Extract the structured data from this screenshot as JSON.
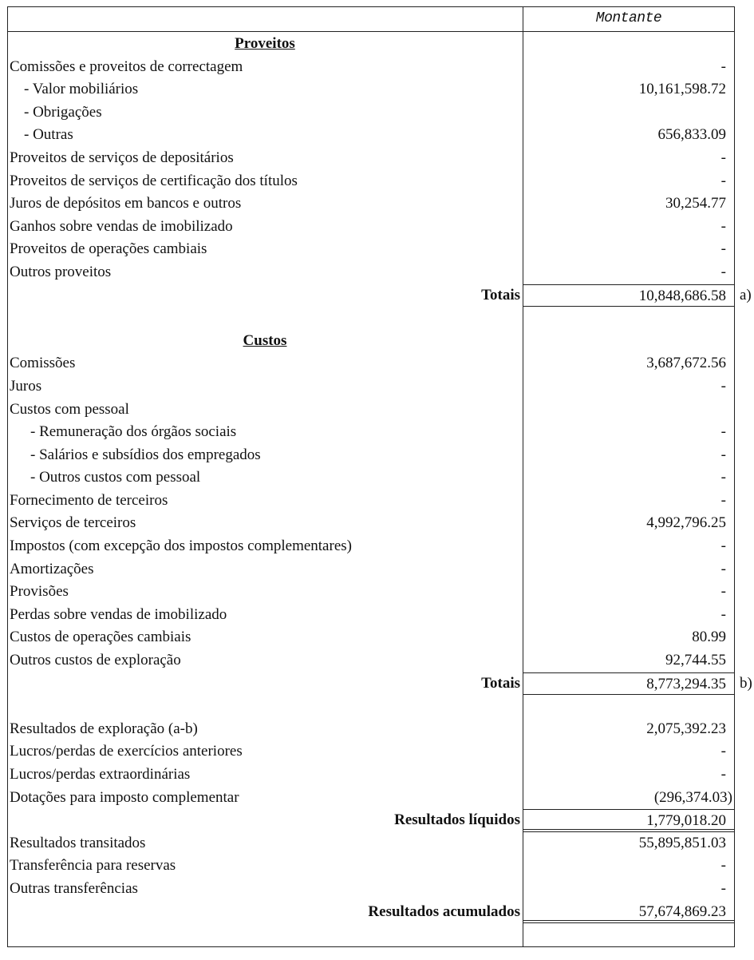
{
  "header": {
    "amount_column": "Montante"
  },
  "rows": [
    {
      "type": "heading",
      "label": "Proveitos",
      "value": ""
    },
    {
      "type": "item",
      "label": "Comissões e proveitos de correctagem",
      "value": "-"
    },
    {
      "type": "sub",
      "label": "- Valor mobiliários",
      "value": "10,161,598.72"
    },
    {
      "type": "sub",
      "label": "- Obrigações",
      "value": ""
    },
    {
      "type": "sub",
      "label": "-  Outras",
      "value": "656,833.09"
    },
    {
      "type": "item",
      "label": "Proveitos de serviços de depositários",
      "value": "-"
    },
    {
      "type": "item",
      "label": "Proveitos de serviços de certificação dos títulos",
      "value": "-"
    },
    {
      "type": "item",
      "label": "Juros de depósitos em bancos e outros",
      "value": "30,254.77"
    },
    {
      "type": "item",
      "label": "Ganhos sobre vendas de imobilizado",
      "value": "-"
    },
    {
      "type": "item",
      "label": "Proveitos de operações cambiais",
      "value": "-"
    },
    {
      "type": "item",
      "label": "Outros proveitos",
      "value": "-"
    },
    {
      "type": "total",
      "label": "Totais",
      "value": "10,848,686.58",
      "note": "a)",
      "rule": "box"
    },
    {
      "type": "blank",
      "label": "",
      "value": ""
    },
    {
      "type": "heading",
      "label": "Custos",
      "value": ""
    },
    {
      "type": "item",
      "label": "Comissões",
      "value": "3,687,672.56"
    },
    {
      "type": "item",
      "label": "Juros",
      "value": "-"
    },
    {
      "type": "item",
      "label": "Custos com pessoal",
      "value": ""
    },
    {
      "type": "sub2",
      "label": "- Remuneração dos órgãos sociais",
      "value": "-"
    },
    {
      "type": "sub2",
      "label": "- Salários e subsídios dos empregados",
      "value": "-"
    },
    {
      "type": "sub2",
      "label": "- Outros custos com pessoal",
      "value": "-"
    },
    {
      "type": "item",
      "label": "Fornecimento de terceiros",
      "value": "-"
    },
    {
      "type": "item",
      "label": "Serviços de terceiros",
      "value": "4,992,796.25"
    },
    {
      "type": "item",
      "label": "Impostos (com excepção dos impostos complementares)",
      "value": "-"
    },
    {
      "type": "item",
      "label": "Amortizações",
      "value": "-"
    },
    {
      "type": "item",
      "label": "Provisões",
      "value": "-"
    },
    {
      "type": "item",
      "label": "Perdas sobre vendas de imobilizado",
      "value": "-"
    },
    {
      "type": "item",
      "label": "Custos de operações cambiais",
      "value": "80.99"
    },
    {
      "type": "item",
      "label": "Outros custos de exploração",
      "value": "92,744.55"
    },
    {
      "type": "total",
      "label": "Totais",
      "value": "8,773,294.35",
      "note": "b)",
      "rule": "box"
    },
    {
      "type": "blank",
      "label": "",
      "value": ""
    },
    {
      "type": "item",
      "label": "Resultados de exploração (a-b)",
      "value": "2,075,392.23"
    },
    {
      "type": "item",
      "label": "Lucros/perdas de exercícios anteriores",
      "value": "-"
    },
    {
      "type": "item",
      "label": "Lucros/perdas extraordinárias",
      "value": "-"
    },
    {
      "type": "item",
      "label": "Dotações para imposto complementar",
      "value": "(296,374.03)",
      "negative": true
    },
    {
      "type": "total",
      "label": "Resultados líquidos",
      "value": "1,779,018.20",
      "rule": "box-double"
    },
    {
      "type": "item",
      "label": "Resultados transitados",
      "value": "55,895,851.03"
    },
    {
      "type": "item",
      "label": "Transferência para reservas",
      "value": "-"
    },
    {
      "type": "item",
      "label": "Outras transferências",
      "value": "-"
    },
    {
      "type": "total",
      "label": "Resultados acumulados",
      "value": "57,674,869.23",
      "rule": "double"
    },
    {
      "type": "blank",
      "label": "",
      "value": ""
    }
  ]
}
